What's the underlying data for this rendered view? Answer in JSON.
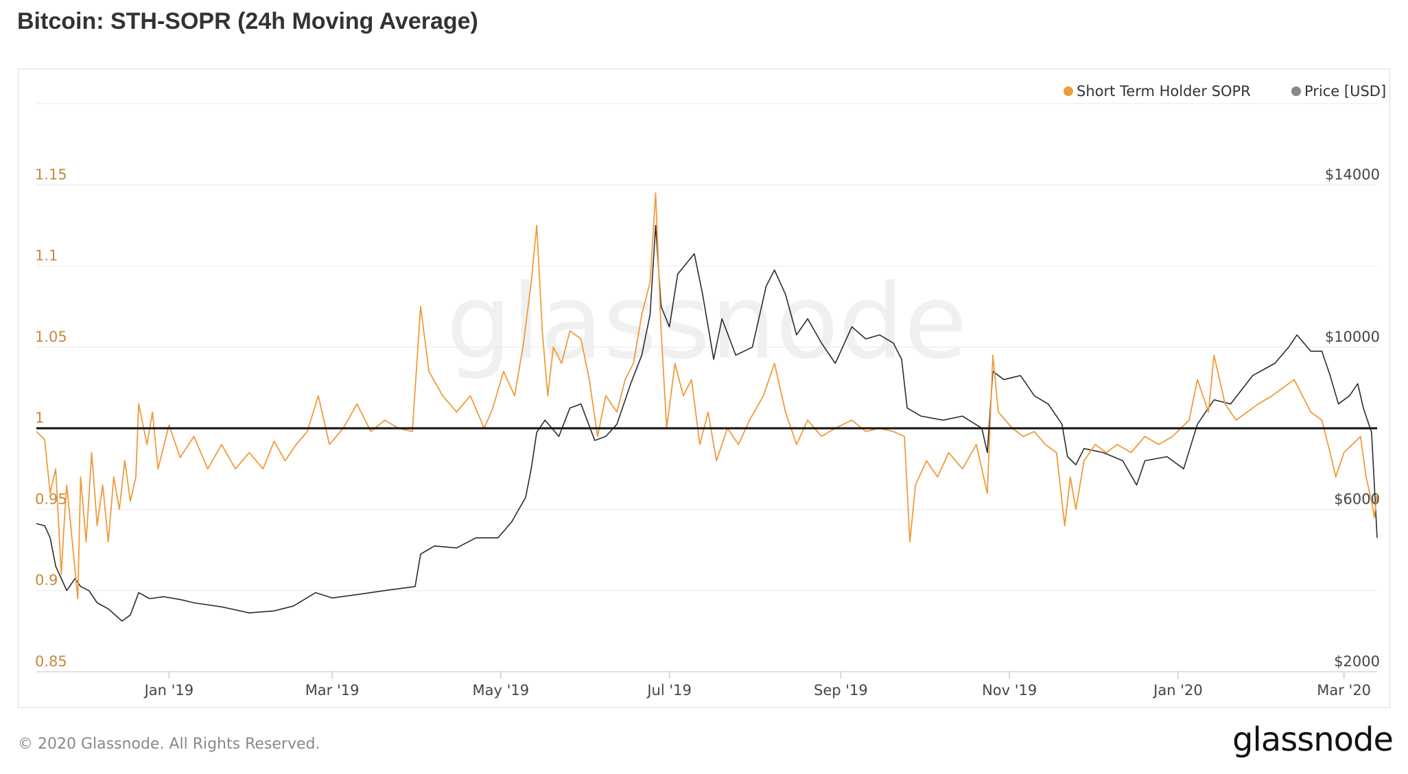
{
  "title": "Bitcoin: STH-SOPR (24h Moving Average)",
  "footer": {
    "copyright": "© 2020 Glassnode. All Rights Reserved.",
    "logo": "glassnode",
    "watermark": "glassnode"
  },
  "colors": {
    "sopr": "#f09a3a",
    "price": "#2b2b2b",
    "left_axis": "#c8883a",
    "right_axis": "#444444",
    "baseline": "#111111",
    "grid": "#ececec"
  },
  "chart_data": {
    "type": "line",
    "x_axis": {
      "type": "date",
      "range": [
        "2018-11-14",
        "2020-03-13"
      ],
      "tick_labels": [
        {
          "label": "Jan '19",
          "date": "2019-01-01"
        },
        {
          "label": "Mar '19",
          "date": "2019-03-01"
        },
        {
          "label": "May '19",
          "date": "2019-05-01"
        },
        {
          "label": "Jul '19",
          "date": "2019-07-01"
        },
        {
          "label": "Sep '19",
          "date": "2019-09-01"
        },
        {
          "label": "Nov '19",
          "date": "2019-11-01"
        },
        {
          "label": "Jan '20",
          "date": "2020-01-01"
        },
        {
          "label": "Mar '20",
          "date": "2020-03-01"
        }
      ]
    },
    "y_left": {
      "range": [
        0.85,
        1.2
      ],
      "ticks": [
        0.85,
        0.9,
        0.95,
        1,
        1.05,
        1.1,
        1.15
      ],
      "tick_labels": [
        "0.85",
        "0.9",
        "0.95",
        "1",
        "1.05",
        "1.1",
        "1.15"
      ]
    },
    "y_right": {
      "range": [
        2000,
        16000
      ],
      "ticks": [
        2000,
        6000,
        10000,
        14000
      ],
      "tick_labels": [
        "$2000",
        "$6000",
        "$10000",
        "$14000"
      ]
    },
    "reference_line": 1,
    "legend": {
      "placement": "top-right",
      "entries": [
        "Short Term Holder SOPR",
        "Price [USD]"
      ]
    },
    "series": [
      {
        "name": "Short Term Holder SOPR",
        "axis": "left",
        "points": [
          [
            "2018-11-14",
            0.998
          ],
          [
            "2018-11-17",
            0.993
          ],
          [
            "2018-11-19",
            0.96
          ],
          [
            "2018-11-21",
            0.975
          ],
          [
            "2018-11-23",
            0.91
          ],
          [
            "2018-11-24",
            0.94
          ],
          [
            "2018-11-25",
            0.965
          ],
          [
            "2018-11-27",
            0.93
          ],
          [
            "2018-11-29",
            0.895
          ],
          [
            "2018-11-30",
            0.97
          ],
          [
            "2018-12-02",
            0.93
          ],
          [
            "2018-12-04",
            0.985
          ],
          [
            "2018-12-06",
            0.94
          ],
          [
            "2018-12-08",
            0.965
          ],
          [
            "2018-12-10",
            0.93
          ],
          [
            "2018-12-12",
            0.97
          ],
          [
            "2018-12-14",
            0.95
          ],
          [
            "2018-12-16",
            0.98
          ],
          [
            "2018-12-18",
            0.955
          ],
          [
            "2018-12-20",
            0.97
          ],
          [
            "2018-12-21",
            1.015
          ],
          [
            "2018-12-24",
            0.99
          ],
          [
            "2018-12-26",
            1.01
          ],
          [
            "2018-12-28",
            0.975
          ],
          [
            "2019-01-01",
            1.002
          ],
          [
            "2019-01-05",
            0.982
          ],
          [
            "2019-01-10",
            0.995
          ],
          [
            "2019-01-15",
            0.975
          ],
          [
            "2019-01-20",
            0.99
          ],
          [
            "2019-01-25",
            0.975
          ],
          [
            "2019-01-30",
            0.985
          ],
          [
            "2019-02-04",
            0.975
          ],
          [
            "2019-02-08",
            0.992
          ],
          [
            "2019-02-12",
            0.98
          ],
          [
            "2019-02-16",
            0.99
          ],
          [
            "2019-02-20",
            0.998
          ],
          [
            "2019-02-24",
            1.02
          ],
          [
            "2019-02-28",
            0.99
          ],
          [
            "2019-03-05",
            1.0
          ],
          [
            "2019-03-10",
            1.015
          ],
          [
            "2019-03-15",
            0.998
          ],
          [
            "2019-03-20",
            1.005
          ],
          [
            "2019-03-25",
            1.0
          ],
          [
            "2019-03-30",
            0.998
          ],
          [
            "2019-04-02",
            1.075
          ],
          [
            "2019-04-05",
            1.035
          ],
          [
            "2019-04-10",
            1.02
          ],
          [
            "2019-04-15",
            1.01
          ],
          [
            "2019-04-20",
            1.02
          ],
          [
            "2019-04-25",
            1.0
          ],
          [
            "2019-04-28",
            1.012
          ],
          [
            "2019-05-02",
            1.035
          ],
          [
            "2019-05-06",
            1.02
          ],
          [
            "2019-05-09",
            1.05
          ],
          [
            "2019-05-12",
            1.09
          ],
          [
            "2019-05-14",
            1.125
          ],
          [
            "2019-05-16",
            1.06
          ],
          [
            "2019-05-18",
            1.02
          ],
          [
            "2019-05-20",
            1.05
          ],
          [
            "2019-05-23",
            1.04
          ],
          [
            "2019-05-26",
            1.06
          ],
          [
            "2019-05-30",
            1.055
          ],
          [
            "2019-06-02",
            1.03
          ],
          [
            "2019-06-05",
            0.995
          ],
          [
            "2019-06-08",
            1.02
          ],
          [
            "2019-06-12",
            1.01
          ],
          [
            "2019-06-15",
            1.03
          ],
          [
            "2019-06-18",
            1.04
          ],
          [
            "2019-06-21",
            1.07
          ],
          [
            "2019-06-24",
            1.09
          ],
          [
            "2019-06-26",
            1.145
          ],
          [
            "2019-06-28",
            1.06
          ],
          [
            "2019-06-30",
            1.0
          ],
          [
            "2019-07-03",
            1.04
          ],
          [
            "2019-07-06",
            1.02
          ],
          [
            "2019-07-09",
            1.03
          ],
          [
            "2019-07-12",
            0.99
          ],
          [
            "2019-07-15",
            1.01
          ],
          [
            "2019-07-18",
            0.98
          ],
          [
            "2019-07-22",
            1.0
          ],
          [
            "2019-07-26",
            0.99
          ],
          [
            "2019-07-30",
            1.005
          ],
          [
            "2019-08-04",
            1.02
          ],
          [
            "2019-08-08",
            1.04
          ],
          [
            "2019-08-12",
            1.01
          ],
          [
            "2019-08-16",
            0.99
          ],
          [
            "2019-08-20",
            1.005
          ],
          [
            "2019-08-25",
            0.995
          ],
          [
            "2019-08-30",
            1.0
          ],
          [
            "2019-09-05",
            1.005
          ],
          [
            "2019-09-10",
            0.998
          ],
          [
            "2019-09-15",
            1.0
          ],
          [
            "2019-09-20",
            0.998
          ],
          [
            "2019-09-24",
            0.995
          ],
          [
            "2019-09-26",
            0.93
          ],
          [
            "2019-09-28",
            0.965
          ],
          [
            "2019-10-02",
            0.98
          ],
          [
            "2019-10-06",
            0.97
          ],
          [
            "2019-10-10",
            0.985
          ],
          [
            "2019-10-15",
            0.975
          ],
          [
            "2019-10-20",
            0.99
          ],
          [
            "2019-10-24",
            0.96
          ],
          [
            "2019-10-26",
            1.045
          ],
          [
            "2019-10-28",
            1.01
          ],
          [
            "2019-11-02",
            1.0
          ],
          [
            "2019-11-06",
            0.995
          ],
          [
            "2019-11-10",
            0.998
          ],
          [
            "2019-11-14",
            0.99
          ],
          [
            "2019-11-18",
            0.985
          ],
          [
            "2019-11-21",
            0.94
          ],
          [
            "2019-11-23",
            0.97
          ],
          [
            "2019-11-25",
            0.95
          ],
          [
            "2019-11-28",
            0.98
          ],
          [
            "2019-12-02",
            0.99
          ],
          [
            "2019-12-06",
            0.985
          ],
          [
            "2019-12-10",
            0.99
          ],
          [
            "2019-12-15",
            0.985
          ],
          [
            "2019-12-20",
            0.995
          ],
          [
            "2019-12-25",
            0.99
          ],
          [
            "2019-12-30",
            0.995
          ],
          [
            "2020-01-05",
            1.005
          ],
          [
            "2020-01-08",
            1.03
          ],
          [
            "2020-01-12",
            1.01
          ],
          [
            "2020-01-14",
            1.045
          ],
          [
            "2020-01-18",
            1.015
          ],
          [
            "2020-01-22",
            1.005
          ],
          [
            "2020-01-26",
            1.01
          ],
          [
            "2020-01-30",
            1.015
          ],
          [
            "2020-02-04",
            1.02
          ],
          [
            "2020-02-08",
            1.025
          ],
          [
            "2020-02-12",
            1.03
          ],
          [
            "2020-02-15",
            1.02
          ],
          [
            "2020-02-18",
            1.01
          ],
          [
            "2020-02-22",
            1.005
          ],
          [
            "2020-02-25",
            0.985
          ],
          [
            "2020-02-27",
            0.97
          ],
          [
            "2020-03-01",
            0.985
          ],
          [
            "2020-03-04",
            0.99
          ],
          [
            "2020-03-07",
            0.995
          ],
          [
            "2020-03-09",
            0.97
          ],
          [
            "2020-03-11",
            0.955
          ],
          [
            "2020-03-12",
            0.945
          ],
          [
            "2020-03-13",
            0.96
          ]
        ]
      },
      {
        "name": "Price [USD]",
        "axis": "right",
        "points": [
          [
            "2018-11-14",
            5650
          ],
          [
            "2018-11-17",
            5600
          ],
          [
            "2018-11-19",
            5300
          ],
          [
            "2018-11-21",
            4600
          ],
          [
            "2018-11-23",
            4300
          ],
          [
            "2018-11-25",
            4000
          ],
          [
            "2018-11-28",
            4300
          ],
          [
            "2018-11-30",
            4100
          ],
          [
            "2018-12-03",
            4000
          ],
          [
            "2018-12-06",
            3700
          ],
          [
            "2018-12-10",
            3550
          ],
          [
            "2018-12-15",
            3250
          ],
          [
            "2018-12-18",
            3400
          ],
          [
            "2018-12-21",
            3950
          ],
          [
            "2018-12-25",
            3800
          ],
          [
            "2018-12-30",
            3850
          ],
          [
            "2019-01-05",
            3780
          ],
          [
            "2019-01-10",
            3700
          ],
          [
            "2019-01-20",
            3600
          ],
          [
            "2019-01-30",
            3450
          ],
          [
            "2019-02-08",
            3500
          ],
          [
            "2019-02-15",
            3620
          ],
          [
            "2019-02-23",
            3950
          ],
          [
            "2019-03-01",
            3820
          ],
          [
            "2019-03-10",
            3900
          ],
          [
            "2019-03-20",
            4000
          ],
          [
            "2019-03-31",
            4100
          ],
          [
            "2019-04-02",
            4900
          ],
          [
            "2019-04-07",
            5100
          ],
          [
            "2019-04-15",
            5050
          ],
          [
            "2019-04-22",
            5300
          ],
          [
            "2019-04-30",
            5300
          ],
          [
            "2019-05-05",
            5700
          ],
          [
            "2019-05-10",
            6300
          ],
          [
            "2019-05-12",
            7000
          ],
          [
            "2019-05-14",
            7900
          ],
          [
            "2019-05-17",
            8200
          ],
          [
            "2019-05-22",
            7800
          ],
          [
            "2019-05-26",
            8500
          ],
          [
            "2019-05-30",
            8600
          ],
          [
            "2019-06-04",
            7700
          ],
          [
            "2019-06-08",
            7800
          ],
          [
            "2019-06-12",
            8100
          ],
          [
            "2019-06-17",
            9100
          ],
          [
            "2019-06-21",
            9800
          ],
          [
            "2019-06-24",
            10800
          ],
          [
            "2019-06-26",
            13000
          ],
          [
            "2019-06-28",
            11000
          ],
          [
            "2019-07-01",
            10500
          ],
          [
            "2019-07-04",
            11800
          ],
          [
            "2019-07-10",
            12300
          ],
          [
            "2019-07-13",
            11300
          ],
          [
            "2019-07-17",
            9700
          ],
          [
            "2019-07-20",
            10700
          ],
          [
            "2019-07-25",
            9800
          ],
          [
            "2019-07-31",
            10000
          ],
          [
            "2019-08-05",
            11500
          ],
          [
            "2019-08-08",
            11900
          ],
          [
            "2019-08-12",
            11300
          ],
          [
            "2019-08-16",
            10300
          ],
          [
            "2019-08-20",
            10700
          ],
          [
            "2019-08-25",
            10100
          ],
          [
            "2019-08-30",
            9600
          ],
          [
            "2019-09-05",
            10500
          ],
          [
            "2019-09-10",
            10200
          ],
          [
            "2019-09-15",
            10300
          ],
          [
            "2019-09-20",
            10100
          ],
          [
            "2019-09-23",
            9700
          ],
          [
            "2019-09-25",
            8500
          ],
          [
            "2019-09-30",
            8300
          ],
          [
            "2019-10-08",
            8200
          ],
          [
            "2019-10-15",
            8300
          ],
          [
            "2019-10-22",
            8000
          ],
          [
            "2019-10-24",
            7400
          ],
          [
            "2019-10-26",
            9400
          ],
          [
            "2019-10-30",
            9200
          ],
          [
            "2019-11-05",
            9300
          ],
          [
            "2019-11-10",
            8800
          ],
          [
            "2019-11-15",
            8600
          ],
          [
            "2019-11-20",
            8100
          ],
          [
            "2019-11-22",
            7300
          ],
          [
            "2019-11-25",
            7100
          ],
          [
            "2019-11-28",
            7500
          ],
          [
            "2019-12-05",
            7400
          ],
          [
            "2019-12-12",
            7200
          ],
          [
            "2019-12-17",
            6600
          ],
          [
            "2019-12-20",
            7200
          ],
          [
            "2019-12-28",
            7300
          ],
          [
            "2020-01-03",
            7000
          ],
          [
            "2020-01-08",
            8100
          ],
          [
            "2020-01-14",
            8700
          ],
          [
            "2020-01-20",
            8600
          ],
          [
            "2020-01-28",
            9300
          ],
          [
            "2020-02-05",
            9600
          ],
          [
            "2020-02-10",
            10000
          ],
          [
            "2020-02-13",
            10300
          ],
          [
            "2020-02-18",
            9900
          ],
          [
            "2020-02-22",
            9900
          ],
          [
            "2020-02-25",
            9300
          ],
          [
            "2020-02-28",
            8600
          ],
          [
            "2020-03-03",
            8800
          ],
          [
            "2020-03-06",
            9100
          ],
          [
            "2020-03-08",
            8500
          ],
          [
            "2020-03-11",
            7900
          ],
          [
            "2020-03-13",
            5300
          ]
        ]
      }
    ]
  }
}
